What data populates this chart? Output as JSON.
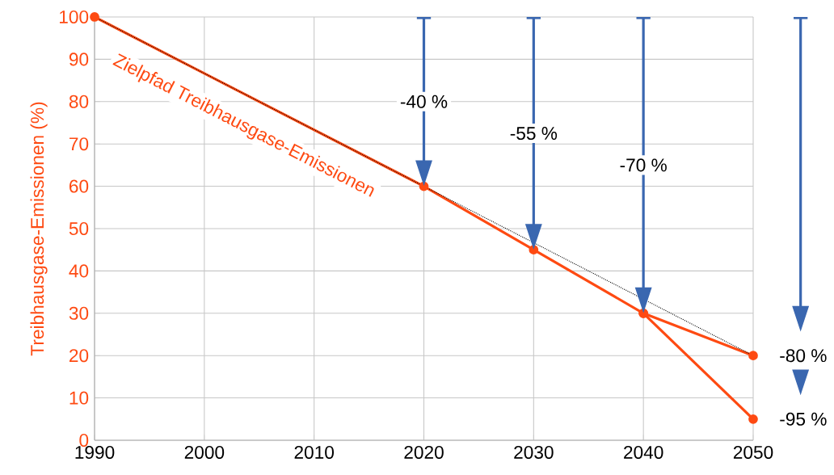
{
  "chart_data": {
    "type": "line",
    "ylabel": "Treibhausgase-Emissionen (%)",
    "x": [
      1990,
      2020,
      2030,
      2040,
      2050
    ],
    "series": [
      {
        "name": "Zielpfad Treibhausgase-Emissionen",
        "color": "#fe4a12",
        "values": [
          100,
          60,
          45,
          30,
          20
        ]
      },
      {
        "color": "#fe4a12",
        "x": [
          2040,
          2050
        ],
        "values": [
          30,
          5
        ]
      },
      {
        "color": "#000000",
        "x": [
          1990,
          2050
        ],
        "values": [
          100,
          20
        ],
        "line_style": "dotted",
        "marker": "none"
      }
    ],
    "marker": "circle",
    "line_style": "solid",
    "grid": true,
    "xlim": [
      1990,
      2050
    ],
    "ylim": [
      0,
      100
    ],
    "xticks": [
      1990,
      2000,
      2010,
      2020,
      2030,
      2040,
      2050
    ],
    "yticks": [
      0,
      10,
      20,
      30,
      40,
      50,
      60,
      70,
      80,
      90,
      100
    ],
    "annotations": [
      "-40 %",
      "-55 %",
      "-70 %",
      "-80 %",
      "-95 %"
    ]
  }
}
